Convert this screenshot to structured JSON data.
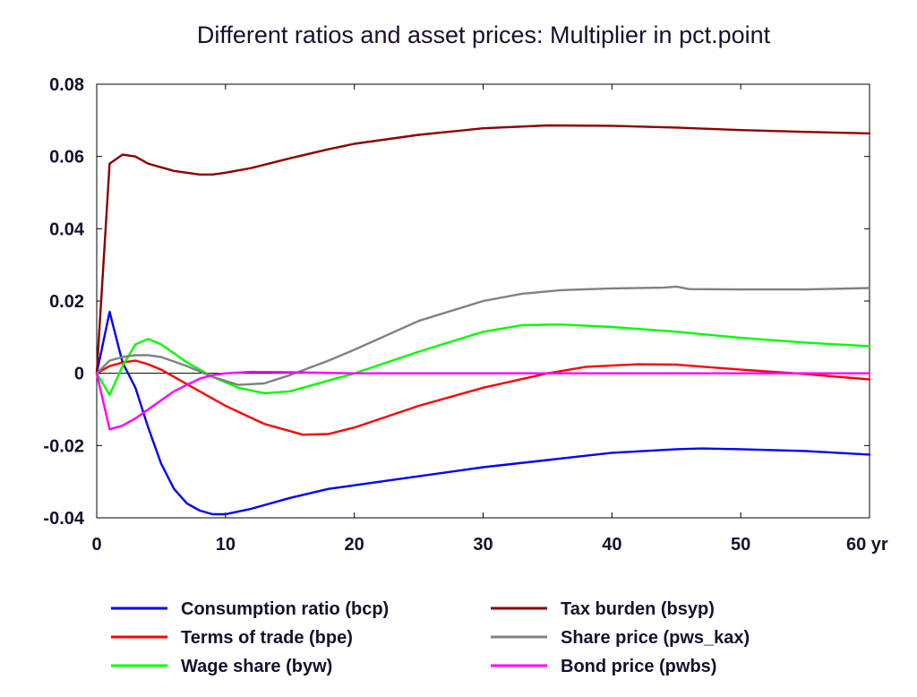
{
  "chart_data": {
    "type": "line",
    "title": "Different ratios and asset prices: Multiplier in pct.point",
    "xlabel": "",
    "ylabel": "",
    "xlim": [
      0,
      60
    ],
    "ylim": [
      -0.04,
      0.08
    ],
    "x_ticks": [
      {
        "value": 0,
        "label": "0"
      },
      {
        "value": 10,
        "label": "10"
      },
      {
        "value": 20,
        "label": "20"
      },
      {
        "value": 30,
        "label": "30"
      },
      {
        "value": 40,
        "label": "40"
      },
      {
        "value": 50,
        "label": "50"
      },
      {
        "value": 60,
        "label": "60 yr"
      }
    ],
    "y_ticks": [
      {
        "value": 0.08,
        "label": "0.08"
      },
      {
        "value": 0.06,
        "label": "0.06"
      },
      {
        "value": 0.04,
        "label": "0.04"
      },
      {
        "value": 0.02,
        "label": "0.02"
      },
      {
        "value": 0,
        "label": "0"
      },
      {
        "value": -0.02,
        "label": "-0.02"
      },
      {
        "value": -0.04,
        "label": "-0.04"
      }
    ],
    "grid": false,
    "legend_position": "bottom",
    "series": [
      {
        "name": "Consumption ratio (bcp)",
        "color": "#0000ff",
        "points": [
          [
            0,
            0
          ],
          [
            1,
            0.017
          ],
          [
            2,
            0.003
          ],
          [
            3,
            -0.004
          ],
          [
            4,
            -0.015
          ],
          [
            5,
            -0.025
          ],
          [
            6,
            -0.032
          ],
          [
            7,
            -0.036
          ],
          [
            8,
            -0.038
          ],
          [
            9,
            -0.039
          ],
          [
            10,
            -0.039
          ],
          [
            12,
            -0.0375
          ],
          [
            15,
            -0.0345
          ],
          [
            18,
            -0.032
          ],
          [
            20,
            -0.031
          ],
          [
            25,
            -0.0285
          ],
          [
            30,
            -0.026
          ],
          [
            35,
            -0.024
          ],
          [
            40,
            -0.022
          ],
          [
            45,
            -0.021
          ],
          [
            47,
            -0.0208
          ],
          [
            50,
            -0.021
          ],
          [
            55,
            -0.0215
          ],
          [
            60,
            -0.0225
          ]
        ]
      },
      {
        "name": "Terms of trade (bpe)",
        "color": "#ff0000",
        "points": [
          [
            0,
            0
          ],
          [
            1,
            0.002
          ],
          [
            2,
            0.003
          ],
          [
            3,
            0.0035
          ],
          [
            4,
            0.0025
          ],
          [
            5,
            0.001
          ],
          [
            7,
            -0.003
          ],
          [
            10,
            -0.009
          ],
          [
            13,
            -0.014
          ],
          [
            16,
            -0.017
          ],
          [
            18,
            -0.0168
          ],
          [
            20,
            -0.015
          ],
          [
            25,
            -0.009
          ],
          [
            30,
            -0.004
          ],
          [
            35,
            0
          ],
          [
            38,
            0.0018
          ],
          [
            42,
            0.0025
          ],
          [
            45,
            0.0024
          ],
          [
            50,
            0.001
          ],
          [
            55,
            -0.0002
          ],
          [
            60,
            -0.0017
          ]
        ]
      },
      {
        "name": "Wage share (byw)",
        "color": "#00ff00",
        "points": [
          [
            0,
            0
          ],
          [
            1,
            -0.006
          ],
          [
            2,
            0.002
          ],
          [
            3,
            0.008
          ],
          [
            4,
            0.0095
          ],
          [
            5,
            0.008
          ],
          [
            7,
            0.003
          ],
          [
            9,
            -0.001
          ],
          [
            11,
            -0.004
          ],
          [
            13,
            -0.0055
          ],
          [
            15,
            -0.005
          ],
          [
            17,
            -0.003
          ],
          [
            20,
            0
          ],
          [
            25,
            0.006
          ],
          [
            30,
            0.0115
          ],
          [
            33,
            0.0133
          ],
          [
            36,
            0.0135
          ],
          [
            40,
            0.0128
          ],
          [
            45,
            0.0115
          ],
          [
            50,
            0.0098
          ],
          [
            55,
            0.0085
          ],
          [
            60,
            0.0075
          ]
        ]
      },
      {
        "name": "Tax burden (bsyp)",
        "color": "#8b0000",
        "points": [
          [
            0,
            0
          ],
          [
            1,
            0.058
          ],
          [
            2,
            0.0605
          ],
          [
            3,
            0.06
          ],
          [
            4,
            0.058
          ],
          [
            6,
            0.056
          ],
          [
            8,
            0.055
          ],
          [
            9,
            0.055
          ],
          [
            10,
            0.0555
          ],
          [
            12,
            0.0568
          ],
          [
            15,
            0.0595
          ],
          [
            18,
            0.062
          ],
          [
            20,
            0.0635
          ],
          [
            25,
            0.066
          ],
          [
            30,
            0.0678
          ],
          [
            35,
            0.0686
          ],
          [
            40,
            0.0685
          ],
          [
            45,
            0.068
          ],
          [
            50,
            0.0673
          ],
          [
            55,
            0.0668
          ],
          [
            60,
            0.0664
          ]
        ]
      },
      {
        "name": "Share price (pws_kax)",
        "color": "#808080",
        "points": [
          [
            0,
            0
          ],
          [
            1,
            0.0035
          ],
          [
            2,
            0.0045
          ],
          [
            3,
            0.005
          ],
          [
            4,
            0.005
          ],
          [
            5,
            0.0045
          ],
          [
            7,
            0.002
          ],
          [
            9,
            -0.001
          ],
          [
            11,
            -0.0032
          ],
          [
            13,
            -0.0028
          ],
          [
            15,
            -0.0005
          ],
          [
            18,
            0.0035
          ],
          [
            20,
            0.0065
          ],
          [
            25,
            0.0145
          ],
          [
            30,
            0.02
          ],
          [
            33,
            0.022
          ],
          [
            36,
            0.023
          ],
          [
            40,
            0.0235
          ],
          [
            44,
            0.0237
          ],
          [
            45,
            0.024
          ],
          [
            46,
            0.0233
          ],
          [
            50,
            0.0232
          ],
          [
            55,
            0.0232
          ],
          [
            60,
            0.0236
          ]
        ]
      },
      {
        "name": "Bond price (pwbs)",
        "color": "#ff00ff",
        "points": [
          [
            0,
            0
          ],
          [
            1,
            -0.0155
          ],
          [
            2,
            -0.0145
          ],
          [
            3,
            -0.0125
          ],
          [
            4,
            -0.01
          ],
          [
            5,
            -0.0075
          ],
          [
            6,
            -0.005
          ],
          [
            7,
            -0.0032
          ],
          [
            8,
            -0.0015
          ],
          [
            9,
            -0.0005
          ],
          [
            10,
            0
          ],
          [
            12,
            0.0004
          ],
          [
            15,
            0.0003
          ],
          [
            20,
            0
          ],
          [
            30,
            0
          ],
          [
            40,
            0
          ],
          [
            50,
            0
          ],
          [
            60,
            0
          ]
        ]
      }
    ]
  }
}
